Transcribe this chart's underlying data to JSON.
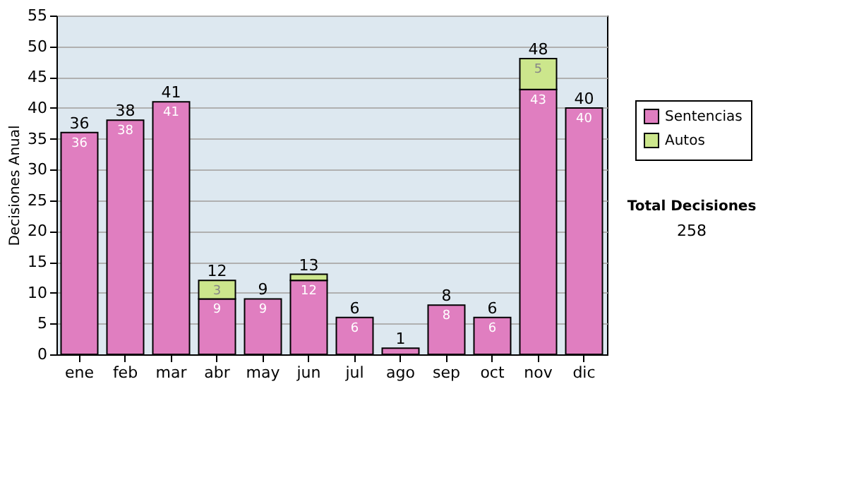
{
  "chart_data": {
    "type": "bar",
    "stacked": true,
    "ylabel": "Decisiones Anual",
    "categories": [
      "ene",
      "feb",
      "mar",
      "abr",
      "may",
      "jun",
      "jul",
      "ago",
      "sep",
      "oct",
      "nov",
      "dic"
    ],
    "series": [
      {
        "name": "Sentencias",
        "color": "#e07ec0",
        "values": [
          36,
          38,
          41,
          9,
          9,
          12,
          6,
          1,
          8,
          6,
          43,
          40
        ],
        "value_labels": [
          "36",
          "38",
          "41",
          "9",
          "9",
          "12",
          "6",
          null,
          "8",
          "6",
          "43",
          "40"
        ]
      },
      {
        "name": "Autos",
        "color": "#cce68c",
        "values": [
          null,
          null,
          null,
          3,
          null,
          1,
          null,
          null,
          null,
          null,
          5,
          null
        ],
        "value_labels": [
          null,
          null,
          null,
          "3",
          null,
          null,
          null,
          null,
          null,
          null,
          "5",
          null
        ]
      }
    ],
    "totals": [
      "36",
      "38",
      "41",
      "12",
      "9",
      "13",
      "6",
      "1",
      "8",
      "6",
      "48",
      "40"
    ],
    "ylim": [
      0,
      55
    ],
    "yticks": [
      0,
      5,
      10,
      15,
      20,
      25,
      30,
      35,
      40,
      45,
      50,
      55
    ],
    "grid": "y",
    "legend": "right",
    "annotations": [
      "Total Decisiones",
      "258"
    ]
  }
}
